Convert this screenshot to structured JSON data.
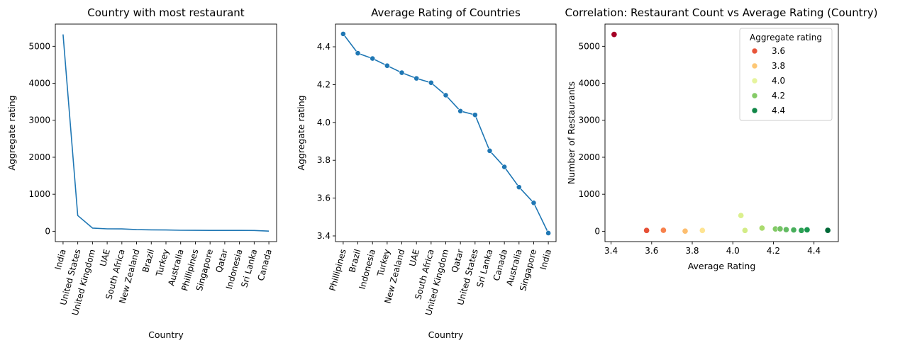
{
  "chart_data": [
    {
      "type": "line",
      "title": "Country with most restaurant",
      "xlabel": "Country",
      "ylabel": "Aggregate rating",
      "categories": [
        "India",
        "United States",
        "United Kingdom",
        "UAE",
        "South Africa",
        "New Zealand",
        "Brazil",
        "Turkey",
        "Australia",
        "Phillipines",
        "Singapore",
        "Qatar",
        "Indonesia",
        "Sri Lanka",
        "Canada"
      ],
      "values": [
        5320,
        425,
        85,
        65,
        63,
        43,
        38,
        35,
        27,
        24,
        22,
        22,
        22,
        21,
        4
      ],
      "ylim": [
        -280,
        5600
      ],
      "yticks": [
        0,
        1000,
        2000,
        3000,
        4000,
        5000
      ],
      "markers": false,
      "color": "#1f77b4"
    },
    {
      "type": "line",
      "title": "Average Rating of Countries",
      "xlabel": "Country",
      "ylabel": "Aggregate rating",
      "categories": [
        "Phillipines",
        "Brazil",
        "Indonesia",
        "Turkey",
        "New Zealand",
        "UAE",
        "South Africa",
        "United Kingdom",
        "Qatar",
        "United States",
        "Sri Lanka",
        "Canada",
        "Australia",
        "Singapore",
        "India"
      ],
      "values": [
        4.468,
        4.366,
        4.338,
        4.3,
        4.263,
        4.233,
        4.21,
        4.144,
        4.06,
        4.04,
        3.85,
        3.765,
        3.658,
        3.575,
        3.415
      ],
      "ylim": [
        3.37,
        4.52
      ],
      "yticks": [
        3.4,
        3.6,
        3.8,
        4.0,
        4.2,
        4.4
      ],
      "markers": true,
      "color": "#1f77b4"
    },
    {
      "type": "scatter",
      "title": "Correlation: Restaurant Count vs Average Rating (Country)",
      "xlabel": "Average Rating",
      "ylabel": "Number of Restaurants",
      "xlim": [
        3.37,
        4.52
      ],
      "ylim": [
        -280,
        5600
      ],
      "xticks": [
        3.4,
        3.6,
        3.8,
        4.0,
        4.2,
        4.4
      ],
      "yticks": [
        0,
        1000,
        2000,
        3000,
        4000,
        5000
      ],
      "points": [
        {
          "x": 3.415,
          "y": 5320
        },
        {
          "x": 3.575,
          "y": 22
        },
        {
          "x": 3.658,
          "y": 27
        },
        {
          "x": 3.765,
          "y": 4
        },
        {
          "x": 3.85,
          "y": 21
        },
        {
          "x": 4.04,
          "y": 425
        },
        {
          "x": 4.06,
          "y": 22
        },
        {
          "x": 4.144,
          "y": 85
        },
        {
          "x": 4.21,
          "y": 63
        },
        {
          "x": 4.233,
          "y": 65
        },
        {
          "x": 4.263,
          "y": 43
        },
        {
          "x": 4.3,
          "y": 35
        },
        {
          "x": 4.338,
          "y": 22
        },
        {
          "x": 4.366,
          "y": 38
        },
        {
          "x": 4.468,
          "y": 24
        }
      ],
      "legend": {
        "title": "Aggregate rating",
        "placement": "top-right",
        "entries": [
          {
            "label": "3.6",
            "color": "#e8553b"
          },
          {
            "label": "3.8",
            "color": "#fdc775"
          },
          {
            "label": "4.0",
            "color": "#e6f49d"
          },
          {
            "label": "4.2",
            "color": "#84ca66"
          },
          {
            "label": "4.4",
            "color": "#108647"
          }
        ]
      },
      "colormap": {
        "min": 3.415,
        "max": 4.468,
        "low": "#a50026",
        "mid": "#ffffbf",
        "high": "#006837"
      }
    }
  ]
}
